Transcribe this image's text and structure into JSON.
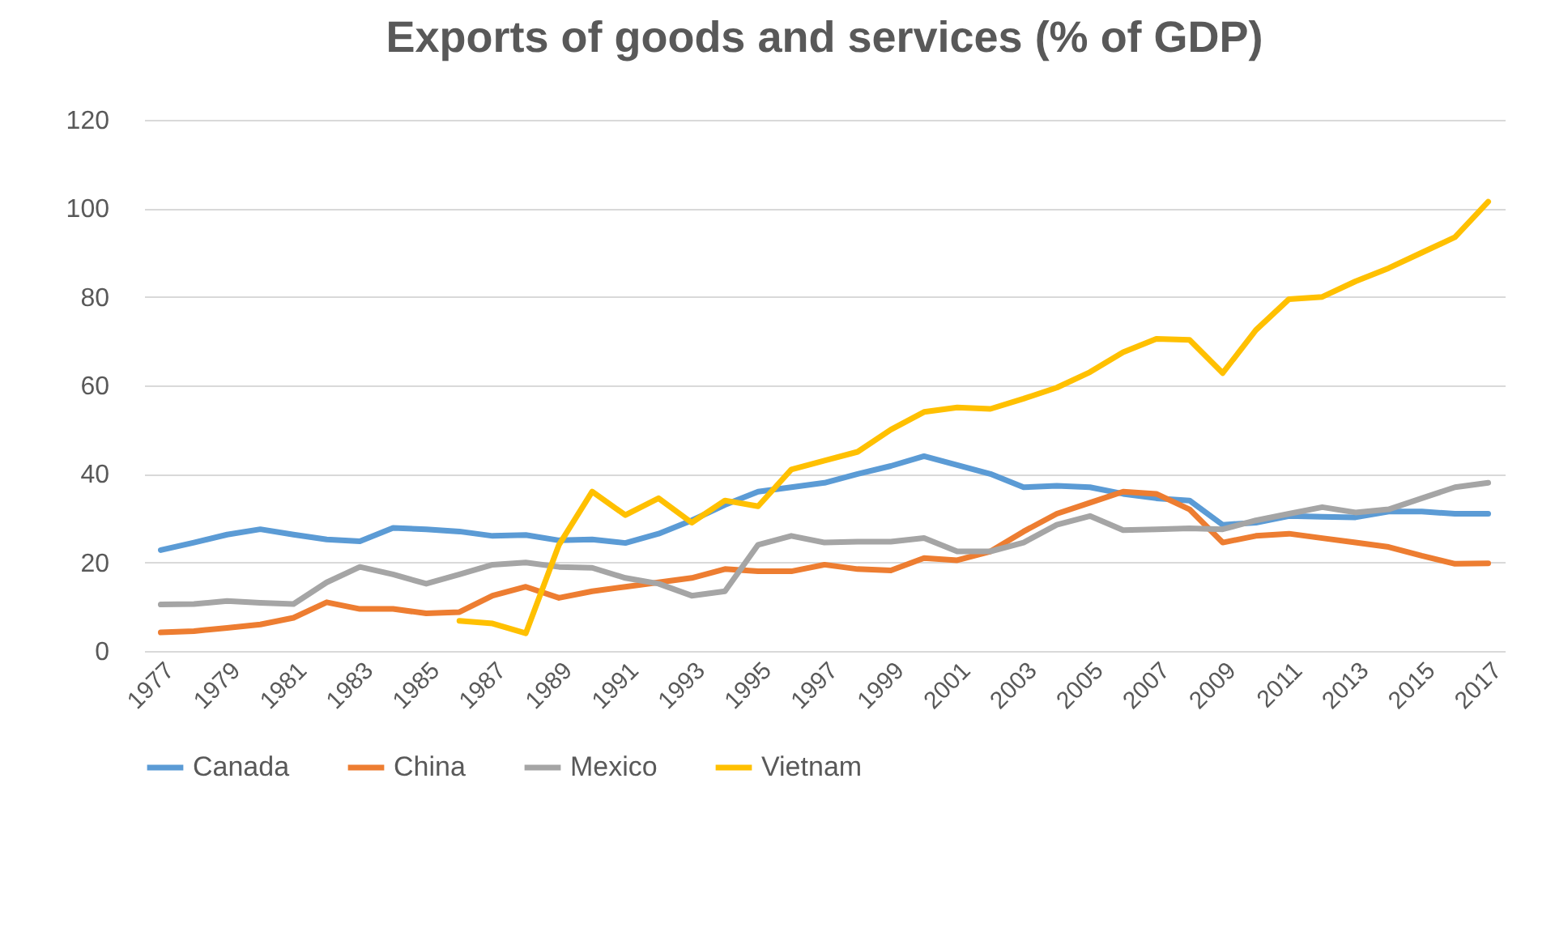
{
  "chart_data": {
    "type": "line",
    "title": "Exports of goods and services (% of GDP)",
    "categories": [
      "1977",
      null,
      "1979",
      null,
      "1981",
      null,
      "1983",
      null,
      "1985",
      null,
      "1987",
      null,
      "1989",
      null,
      "1991",
      null,
      "1993",
      null,
      "1995",
      null,
      "1997",
      null,
      "1999",
      null,
      "2001",
      null,
      "2003",
      null,
      "2005",
      null,
      "2007",
      null,
      "2009",
      null,
      "2011",
      null,
      "2013",
      null,
      "2015",
      null,
      "2017"
    ],
    "series": [
      {
        "name": "Canada",
        "color": "#5b9bd5",
        "values": [
          22.8,
          24.5,
          26.3,
          27.5,
          26.3,
          25.2,
          24.8,
          27.8,
          27.5,
          27,
          26,
          26.2,
          25,
          25.2,
          24.4,
          26.5,
          29.5,
          33,
          36,
          37,
          38,
          40,
          41.8,
          44,
          42,
          40,
          37,
          37.3,
          37,
          35.5,
          34.5,
          34,
          28.5,
          29,
          30.5,
          30.3,
          30.2,
          31.5,
          31.5,
          31,
          31
        ]
      },
      {
        "name": "China",
        "color": "#ed7d31",
        "values": [
          4.2,
          4.5,
          5.2,
          6,
          7.5,
          11,
          9.5,
          9.5,
          8.5,
          8.8,
          12.5,
          14.5,
          12,
          13.5,
          14.5,
          15.5,
          16.5,
          18.5,
          18,
          18,
          19.5,
          18.5,
          18.2,
          21,
          20.5,
          22.5,
          27,
          31,
          33.5,
          36,
          35.5,
          32,
          24.5,
          26,
          26.5,
          25.5,
          24.5,
          23.5,
          21.5,
          19.7,
          19.8
        ]
      },
      {
        "name": "Mexico",
        "color": "#a5a5a5",
        "values": [
          10.5,
          10.6,
          11.3,
          10.9,
          10.6,
          15.5,
          19,
          17.3,
          15.2,
          17.3,
          19.5,
          20,
          19,
          18.8,
          16.5,
          15.2,
          12.5,
          13.5,
          24,
          26,
          24.5,
          24.7,
          24.7,
          25.5,
          22.5,
          22.5,
          24.5,
          28.5,
          30.5,
          27.3,
          27.5,
          27.7,
          27.5,
          29.5,
          31,
          32.5,
          31.3,
          32,
          34.5,
          37,
          38
        ]
      },
      {
        "name": "Vietnam",
        "color": "#ffc000",
        "values": [
          null,
          null,
          null,
          null,
          null,
          null,
          null,
          null,
          null,
          6.8,
          6.2,
          4,
          24,
          36,
          30.7,
          34.5,
          29,
          34,
          32.7,
          41,
          43,
          45,
          50,
          54,
          55,
          54.7,
          57,
          59.5,
          63,
          67.5,
          70.5,
          70.3,
          62.8,
          72.5,
          79.5,
          80,
          83.5,
          86.5,
          90,
          93.5,
          101.5
        ]
      }
    ],
    "ylim": [
      0,
      120
    ],
    "yticks": [
      0,
      20,
      40,
      60,
      80,
      100,
      120
    ],
    "grid": "y",
    "legend": "bottom",
    "line_style": "solid",
    "marker": "none"
  }
}
